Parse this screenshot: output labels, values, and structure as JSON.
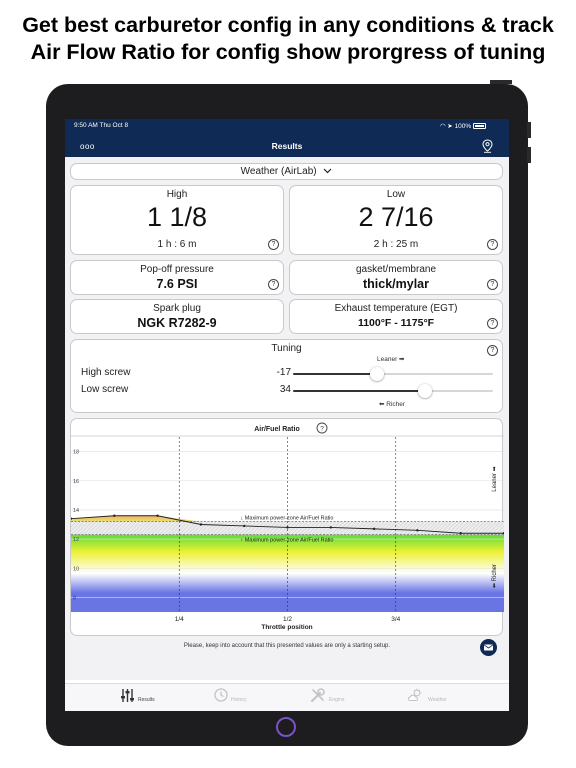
{
  "headline": {
    "line1": "Get best carburetor config in any conditions & track",
    "line2": "Air Flow Ratio for config show prorgress of tuning"
  },
  "status_bar": {
    "time_date": "9:50 AM   Thu Oct 8",
    "battery": "100%"
  },
  "nav": {
    "menu": "ooo",
    "title": "Results",
    "right_icon": "location-pin-icon"
  },
  "weather_selector": {
    "label": "Weather (AirLab)"
  },
  "high": {
    "title": "High",
    "value": "1 1/8",
    "time": "1 h : 6 m"
  },
  "low": {
    "title": "Low",
    "value": "2 7/16",
    "time": "2 h : 25 m"
  },
  "popoff": {
    "title": "Pop-off pressure",
    "value": "7.6 PSI"
  },
  "gasket": {
    "title": "gasket/membrane",
    "value": "thick/mylar"
  },
  "spark": {
    "title": "Spark plug",
    "value": "NGK R7282-9"
  },
  "egt": {
    "title": "Exhaust temperature (EGT)",
    "value": "1100°F - 1175°F"
  },
  "tuning": {
    "title": "Tuning",
    "leaner_hint": "Leaner ➡",
    "richer_hint": "⬅ Richer",
    "high_screw": {
      "label": "High screw",
      "value": "-17",
      "position": 0.42
    },
    "low_screw": {
      "label": "Low screw",
      "value": "34",
      "position": 0.66
    }
  },
  "chart_data": {
    "type": "line",
    "title": "Air/Fuel Ratio",
    "xlabel": "Throttle position",
    "ylabel": "",
    "xlim": [
      0,
      1
    ],
    "ylim": [
      7,
      19
    ],
    "x_ticks": [
      {
        "value": 0.25,
        "label": "1/4"
      },
      {
        "value": 0.5,
        "label": "1/2"
      },
      {
        "value": 0.75,
        "label": "3/4"
      }
    ],
    "y_ticks": [
      8,
      10,
      12,
      14,
      16,
      18
    ],
    "grid": true,
    "series": [
      {
        "x": [
          0,
          0.1,
          0.2,
          0.3,
          0.4,
          0.5,
          0.6,
          0.7,
          0.8,
          0.9,
          1.0
        ],
        "y": [
          13.4,
          13.6,
          13.6,
          13.0,
          12.9,
          12.8,
          12.8,
          12.7,
          12.6,
          12.4,
          12.4
        ]
      }
    ],
    "annotations": {
      "max_line_top": {
        "text": "↓ Maximum power-zone Air/Fuel Ratio",
        "y": 13.2
      },
      "max_line_bottom": {
        "text": "↑ Maximum power-zone Air/Fuel Ratio",
        "y": 12.3
      },
      "right_top": "Leaner ➡",
      "right_bottom": "⬅ Richer"
    },
    "colors": {
      "line": "#222222",
      "above_fill": "#f2c38a",
      "zone_green": "#5fdc3c",
      "zone_yellow": "#ecf033",
      "zone_blue": "#6a75e4"
    }
  },
  "disclaimer": "Please, keep into account that this presented values are only a starting setup.",
  "tabs": [
    {
      "label": "Results",
      "icon": "sliders-icon",
      "active": true
    },
    {
      "label": "History",
      "icon": "clock-icon",
      "active": false
    },
    {
      "label": "Engine",
      "icon": "tools-icon",
      "active": false
    },
    {
      "label": "Weather",
      "icon": "weather-icon",
      "active": false
    }
  ]
}
